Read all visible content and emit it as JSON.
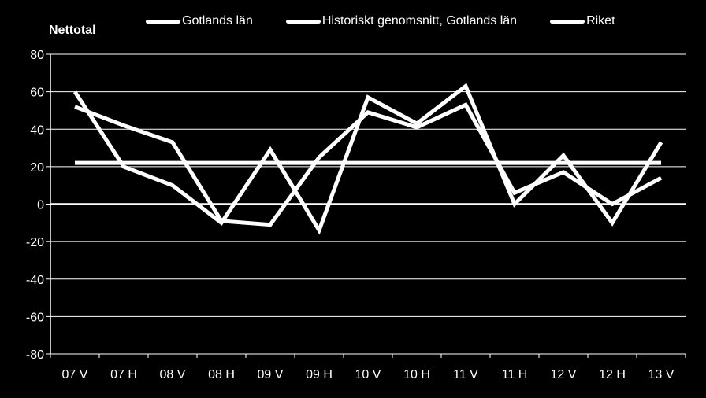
{
  "chart_data": {
    "type": "line",
    "ylabel": "Nettotal",
    "xlabel": "",
    "ylim": [
      -80,
      80
    ],
    "yticks": [
      80,
      60,
      40,
      20,
      0,
      -20,
      -40,
      -60,
      -80
    ],
    "categories": [
      "07 V",
      "07 H",
      "08 V",
      "08 H",
      "09 V",
      "09 H",
      "10 V",
      "10 H",
      "11 V",
      "11 H",
      "12 V",
      "12 H",
      "13 V"
    ],
    "grid": true,
    "legend_position": "top",
    "series": [
      {
        "name": "Gotlands län",
        "values": [
          60,
          20,
          10,
          -10,
          29,
          -14,
          57,
          43,
          63,
          0,
          26,
          -10,
          33
        ]
      },
      {
        "name": "Historiskt genomsnitt, Gotlands län",
        "values": [
          52,
          42,
          33,
          -9,
          -11,
          25,
          49,
          41,
          53,
          6,
          17,
          0,
          14
        ]
      },
      {
        "name": "Riket",
        "values": [
          22,
          22,
          22,
          22,
          22,
          22,
          22,
          22,
          22,
          22,
          22,
          22,
          22
        ]
      }
    ],
    "colors": {
      "background": "#000000",
      "lines": "#ffffff",
      "grid": "#ffffff"
    }
  }
}
